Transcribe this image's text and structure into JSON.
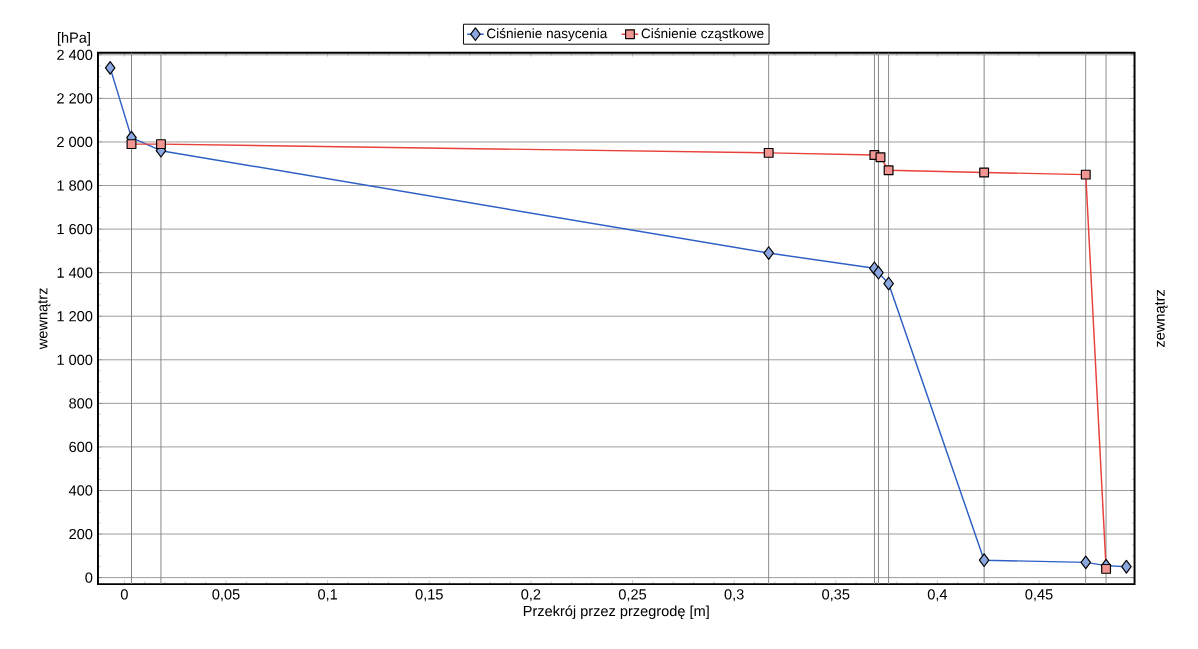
{
  "chart_data": {
    "type": "line",
    "xlabel": "Przekrój przez przegrodę [m]",
    "ylabel": "wewnątrz",
    "y2label": "zewnątrz",
    "annotations": [
      "[hPa]"
    ],
    "series": [
      {
        "name": "Ciśnienie nasycenia",
        "color": "#2e5fc4",
        "marker": "diamond",
        "x": [
          -0.007,
          0.0035,
          0.018,
          0.317,
          0.369,
          0.371,
          0.376,
          0.423,
          0.473,
          0.483,
          0.493
        ],
        "values": [
          2340,
          2020,
          1960,
          1490,
          1420,
          1400,
          1350,
          80,
          70,
          55,
          50
        ]
      },
      {
        "name": "Ciśnienie cząstkowe",
        "color": "#e8403a",
        "marker": "square",
        "x": [
          0.0035,
          0.018,
          0.317,
          0.369,
          0.372,
          0.376,
          0.423,
          0.473,
          0.483
        ],
        "values": [
          1990,
          1990,
          1950,
          1940,
          1930,
          1870,
          1860,
          1850,
          40
        ]
      }
    ],
    "xlim": [
      -0.013,
      0.497
    ],
    "ylim": [
      -30,
      2410
    ],
    "xticks": [
      0,
      {
        "value": 0.05,
        "label": "0,05"
      },
      {
        "value": 0.1,
        "label": "0,1"
      },
      {
        "value": 0.15,
        "label": "0,15"
      },
      {
        "value": 0.2,
        "label": "0,2"
      },
      {
        "value": 0.25,
        "label": "0,25"
      },
      {
        "value": 0.3,
        "label": "0,3"
      },
      {
        "value": 0.35,
        "label": "0,35"
      },
      {
        "value": 0.4,
        "label": "0,4"
      },
      {
        "value": 0.45,
        "label": "0,45"
      }
    ],
    "yticks": [
      0,
      200,
      400,
      600,
      800,
      {
        "value": 1000,
        "label": "1 000"
      },
      {
        "value": 1200,
        "label": "1 200"
      },
      {
        "value": 1400,
        "label": "1 400"
      },
      {
        "value": 1600,
        "label": "1 600"
      },
      {
        "value": 1800,
        "label": "1 800"
      },
      {
        "value": 2000,
        "label": "2 000"
      },
      {
        "value": 2200,
        "label": "2 200"
      },
      {
        "value": 2400,
        "label": "2 400"
      }
    ],
    "grid": "y",
    "legend": "top",
    "line_style": "solid",
    "ref_lines": [
      {
        "axis": "x",
        "value": 0.0035,
        "color": "#808080"
      },
      {
        "axis": "x",
        "value": 0.018,
        "color": "#808080"
      },
      {
        "axis": "x",
        "value": 0.317,
        "color": "#808080"
      },
      {
        "axis": "x",
        "value": 0.369,
        "color": "#808080"
      },
      {
        "axis": "x",
        "value": 0.371,
        "color": "#808080"
      },
      {
        "axis": "x",
        "value": 0.376,
        "color": "#808080"
      },
      {
        "axis": "x",
        "value": 0.423,
        "color": "#808080"
      },
      {
        "axis": "x",
        "value": 0.473,
        "color": "#808080"
      },
      {
        "axis": "x",
        "value": 0.483,
        "color": "#808080"
      }
    ]
  }
}
